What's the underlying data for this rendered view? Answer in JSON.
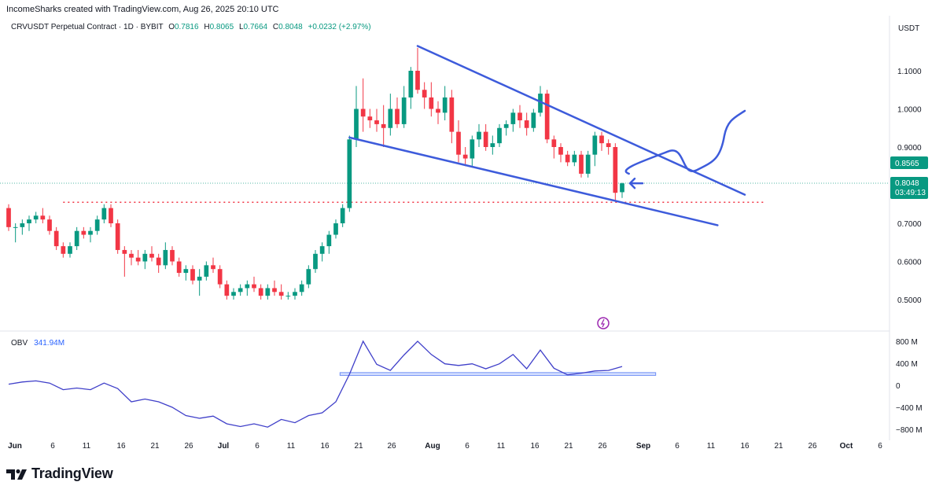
{
  "header": {
    "created_by": "IncomeSharks created with TradingView.com, Aug 26, 2025 20:10 UTC"
  },
  "legend": {
    "symbol": "CRVUSDT Perpetual Contract · 1D · BYBIT",
    "open_label": "O",
    "open": "0.7816",
    "high_label": "H",
    "high": "0.8065",
    "low_label": "L",
    "low": "0.7664",
    "close_label": "C",
    "close": "0.8048",
    "change": "+0.0232 (+2.97%)"
  },
  "price_scale": {
    "currency": "USDT",
    "ticks": [
      "1.1000",
      "1.0000",
      "0.9000",
      "0.7000",
      "0.6000",
      "0.5000"
    ],
    "label_mid": "0.8565",
    "label_last": "0.8048",
    "countdown": "03:49:13"
  },
  "obv": {
    "label": "OBV",
    "value": "341.94M",
    "ticks": [
      "800 M",
      "400 M",
      "0",
      "−400 M",
      "−800 M"
    ]
  },
  "time_axis": {
    "labels": [
      "Jun",
      "6",
      "11",
      "16",
      "21",
      "26",
      "Jul",
      "6",
      "11",
      "16",
      "21",
      "26",
      "Aug",
      "6",
      "11",
      "16",
      "21",
      "26",
      "Sep",
      "6",
      "11",
      "16",
      "21",
      "26",
      "Oct",
      "6"
    ]
  },
  "branding": {
    "logo_text": "TradingView"
  },
  "colors": {
    "up": "#089981",
    "down": "#f23645",
    "line": "#3d5bdb",
    "obv": "#3f3fc9",
    "support": "#f23645"
  },
  "chart_data": [
    {
      "type": "candlestick",
      "title": "CRVUSDT Perpetual Contract · 1D · BYBIT",
      "ylabel": "USDT",
      "y_scale": "linear",
      "ylim": [
        0.43,
        1.2
      ],
      "x_start": "2025-06-01",
      "x_end": "2025-10-08",
      "ohlc": [
        [
          "2025-06-01",
          0.74,
          0.75,
          0.68,
          0.69
        ],
        [
          "2025-06-02",
          0.69,
          0.7,
          0.65,
          0.69
        ],
        [
          "2025-06-03",
          0.69,
          0.71,
          0.67,
          0.7
        ],
        [
          "2025-06-04",
          0.7,
          0.72,
          0.68,
          0.71
        ],
        [
          "2025-06-05",
          0.71,
          0.73,
          0.7,
          0.72
        ],
        [
          "2025-06-06",
          0.72,
          0.74,
          0.7,
          0.71
        ],
        [
          "2025-06-07",
          0.71,
          0.72,
          0.67,
          0.68
        ],
        [
          "2025-06-08",
          0.68,
          0.69,
          0.63,
          0.64
        ],
        [
          "2025-06-09",
          0.64,
          0.65,
          0.61,
          0.62
        ],
        [
          "2025-06-10",
          0.62,
          0.65,
          0.61,
          0.64
        ],
        [
          "2025-06-11",
          0.64,
          0.69,
          0.63,
          0.68
        ],
        [
          "2025-06-12",
          0.68,
          0.69,
          0.66,
          0.67
        ],
        [
          "2025-06-13",
          0.67,
          0.69,
          0.65,
          0.68
        ],
        [
          "2025-06-14",
          0.68,
          0.72,
          0.67,
          0.71
        ],
        [
          "2025-06-15",
          0.71,
          0.75,
          0.7,
          0.74
        ],
        [
          "2025-06-16",
          0.74,
          0.75,
          0.69,
          0.7
        ],
        [
          "2025-06-17",
          0.7,
          0.71,
          0.62,
          0.63
        ],
        [
          "2025-06-18",
          0.63,
          0.64,
          0.56,
          0.62
        ],
        [
          "2025-06-19",
          0.62,
          0.63,
          0.59,
          0.61
        ],
        [
          "2025-06-20",
          0.61,
          0.63,
          0.59,
          0.6
        ],
        [
          "2025-06-21",
          0.6,
          0.63,
          0.58,
          0.62
        ],
        [
          "2025-06-22",
          0.62,
          0.64,
          0.6,
          0.61
        ],
        [
          "2025-06-23",
          0.61,
          0.62,
          0.57,
          0.59
        ],
        [
          "2025-06-24",
          0.59,
          0.65,
          0.58,
          0.63
        ],
        [
          "2025-06-25",
          0.63,
          0.64,
          0.59,
          0.6
        ],
        [
          "2025-06-26",
          0.6,
          0.61,
          0.56,
          0.57
        ],
        [
          "2025-06-27",
          0.57,
          0.59,
          0.55,
          0.58
        ],
        [
          "2025-06-28",
          0.58,
          0.59,
          0.54,
          0.55
        ],
        [
          "2025-06-29",
          0.55,
          0.58,
          0.51,
          0.56
        ],
        [
          "2025-06-30",
          0.56,
          0.6,
          0.55,
          0.59
        ],
        [
          "2025-07-01",
          0.59,
          0.61,
          0.57,
          0.58
        ],
        [
          "2025-07-02",
          0.58,
          0.59,
          0.53,
          0.54
        ],
        [
          "2025-07-03",
          0.54,
          0.55,
          0.5,
          0.51
        ],
        [
          "2025-07-04",
          0.51,
          0.53,
          0.5,
          0.52
        ],
        [
          "2025-07-05",
          0.52,
          0.54,
          0.51,
          0.53
        ],
        [
          "2025-07-06",
          0.53,
          0.55,
          0.51,
          0.54
        ],
        [
          "2025-07-07",
          0.54,
          0.56,
          0.52,
          0.53
        ],
        [
          "2025-07-08",
          0.53,
          0.54,
          0.5,
          0.51
        ],
        [
          "2025-07-09",
          0.51,
          0.54,
          0.5,
          0.53
        ],
        [
          "2025-07-10",
          0.53,
          0.55,
          0.51,
          0.52
        ],
        [
          "2025-07-11",
          0.52,
          0.54,
          0.5,
          0.51
        ],
        [
          "2025-07-12",
          0.51,
          0.52,
          0.5,
          0.51
        ],
        [
          "2025-07-13",
          0.51,
          0.53,
          0.5,
          0.52
        ],
        [
          "2025-07-14",
          0.52,
          0.55,
          0.51,
          0.54
        ],
        [
          "2025-07-15",
          0.54,
          0.59,
          0.53,
          0.58
        ],
        [
          "2025-07-16",
          0.58,
          0.63,
          0.57,
          0.62
        ],
        [
          "2025-07-17",
          0.62,
          0.65,
          0.6,
          0.64
        ],
        [
          "2025-07-18",
          0.64,
          0.68,
          0.62,
          0.67
        ],
        [
          "2025-07-19",
          0.67,
          0.71,
          0.66,
          0.7
        ],
        [
          "2025-07-20",
          0.7,
          0.75,
          0.69,
          0.74
        ],
        [
          "2025-07-21",
          0.74,
          0.93,
          0.73,
          0.92
        ],
        [
          "2025-07-22",
          0.92,
          1.06,
          0.9,
          1.0
        ],
        [
          "2025-07-23",
          1.0,
          1.08,
          0.94,
          0.98
        ],
        [
          "2025-07-24",
          0.98,
          1.0,
          0.95,
          0.97
        ],
        [
          "2025-07-25",
          0.97,
          1.0,
          0.94,
          0.96
        ],
        [
          "2025-07-26",
          0.96,
          1.01,
          0.9,
          0.95
        ],
        [
          "2025-07-27",
          0.95,
          1.04,
          0.93,
          1.0
        ],
        [
          "2025-07-28",
          1.0,
          1.03,
          0.95,
          0.96
        ],
        [
          "2025-07-29",
          0.96,
          1.06,
          0.95,
          1.03
        ],
        [
          "2025-07-30",
          1.03,
          1.11,
          1.0,
          1.1
        ],
        [
          "2025-07-31",
          1.1,
          1.16,
          1.04,
          1.05
        ],
        [
          "2025-08-01",
          1.05,
          1.07,
          1.0,
          1.03
        ],
        [
          "2025-08-02",
          1.03,
          1.07,
          0.98,
          1.0
        ],
        [
          "2025-08-03",
          1.0,
          1.02,
          0.96,
          0.99
        ],
        [
          "2025-08-04",
          0.99,
          1.06,
          0.97,
          1.03
        ],
        [
          "2025-08-05",
          1.03,
          1.05,
          0.91,
          0.94
        ],
        [
          "2025-08-06",
          0.94,
          0.97,
          0.86,
          0.88
        ],
        [
          "2025-08-07",
          0.88,
          0.9,
          0.85,
          0.87
        ],
        [
          "2025-08-08",
          0.87,
          0.93,
          0.85,
          0.92
        ],
        [
          "2025-08-09",
          0.92,
          0.96,
          0.9,
          0.94
        ],
        [
          "2025-08-10",
          0.94,
          0.96,
          0.89,
          0.9
        ],
        [
          "2025-08-11",
          0.9,
          0.93,
          0.88,
          0.91
        ],
        [
          "2025-08-12",
          0.91,
          0.96,
          0.9,
          0.95
        ],
        [
          "2025-08-13",
          0.95,
          0.97,
          0.93,
          0.96
        ],
        [
          "2025-08-14",
          0.96,
          1.0,
          0.94,
          0.99
        ],
        [
          "2025-08-15",
          0.99,
          1.01,
          0.95,
          0.97
        ],
        [
          "2025-08-16",
          0.97,
          0.99,
          0.93,
          0.95
        ],
        [
          "2025-08-17",
          0.95,
          1.0,
          0.94,
          0.99
        ],
        [
          "2025-08-18",
          0.99,
          1.06,
          0.98,
          1.04
        ],
        [
          "2025-08-19",
          1.04,
          1.05,
          0.91,
          0.92
        ],
        [
          "2025-08-20",
          0.92,
          0.93,
          0.87,
          0.9
        ],
        [
          "2025-08-21",
          0.9,
          0.91,
          0.86,
          0.88
        ],
        [
          "2025-08-22",
          0.88,
          0.89,
          0.85,
          0.86
        ],
        [
          "2025-08-23",
          0.86,
          0.89,
          0.85,
          0.88
        ],
        [
          "2025-08-24",
          0.88,
          0.89,
          0.82,
          0.83
        ],
        [
          "2025-08-25",
          0.83,
          0.89,
          0.82,
          0.88
        ],
        [
          "2025-08-26",
          0.88,
          0.94,
          0.85,
          0.93
        ],
        [
          "2025-08-27",
          0.93,
          0.94,
          0.89,
          0.91
        ],
        [
          "2025-08-28",
          0.91,
          0.92,
          0.88,
          0.9
        ],
        [
          "2025-08-29",
          0.9,
          0.91,
          0.76,
          0.78
        ],
        [
          "2025-08-30",
          0.7816,
          0.8065,
          0.7664,
          0.8048
        ]
      ]
    },
    {
      "type": "line",
      "title": "OBV",
      "ylim": [
        -1000,
        1000
      ],
      "y_unit": "M",
      "last_value": 341.94,
      "series": [
        {
          "name": "OBV",
          "x": [
            "2025-06-01",
            "2025-06-03",
            "2025-06-05",
            "2025-06-07",
            "2025-06-09",
            "2025-06-11",
            "2025-06-13",
            "2025-06-15",
            "2025-06-17",
            "2025-06-19",
            "2025-06-21",
            "2025-06-23",
            "2025-06-25",
            "2025-06-27",
            "2025-06-29",
            "2025-07-01",
            "2025-07-03",
            "2025-07-05",
            "2025-07-07",
            "2025-07-09",
            "2025-07-11",
            "2025-07-13",
            "2025-07-15",
            "2025-07-17",
            "2025-07-19",
            "2025-07-21",
            "2025-07-23",
            "2025-07-25",
            "2025-07-27",
            "2025-07-29",
            "2025-07-31",
            "2025-08-02",
            "2025-08-04",
            "2025-08-06",
            "2025-08-08",
            "2025-08-10",
            "2025-08-12",
            "2025-08-14",
            "2025-08-16",
            "2025-08-18",
            "2025-08-20",
            "2025-08-22",
            "2025-08-24",
            "2025-08-26",
            "2025-08-28",
            "2025-08-30"
          ],
          "values": [
            20,
            60,
            80,
            40,
            -80,
            -50,
            -80,
            40,
            -60,
            -300,
            -250,
            -300,
            -400,
            -550,
            -600,
            -560,
            -700,
            -750,
            -700,
            -760,
            -620,
            -680,
            -550,
            -500,
            -300,
            200,
            800,
            380,
            270,
            550,
            800,
            560,
            390,
            360,
            390,
            300,
            390,
            560,
            300,
            640,
            310,
            190,
            220,
            260,
            270,
            341.94
          ]
        }
      ]
    }
  ],
  "annotations": {
    "support_level": 0.7552,
    "obv_support_band": [
      180,
      230
    ],
    "wedge_upper": [
      [
        "2025-07-31",
        1.165
      ],
      [
        "2025-09-17",
        0.775
      ]
    ],
    "wedge_lower": [
      [
        "2025-07-21",
        0.925
      ],
      [
        "2025-09-13",
        0.695
      ]
    ],
    "projection_path": [
      [
        "2025-08-31",
        0.83
      ],
      [
        "2025-09-06",
        0.89
      ],
      [
        "2025-09-10",
        0.84
      ],
      [
        "2025-09-14",
        0.93
      ],
      [
        "2025-09-17",
        0.995
      ]
    ]
  }
}
